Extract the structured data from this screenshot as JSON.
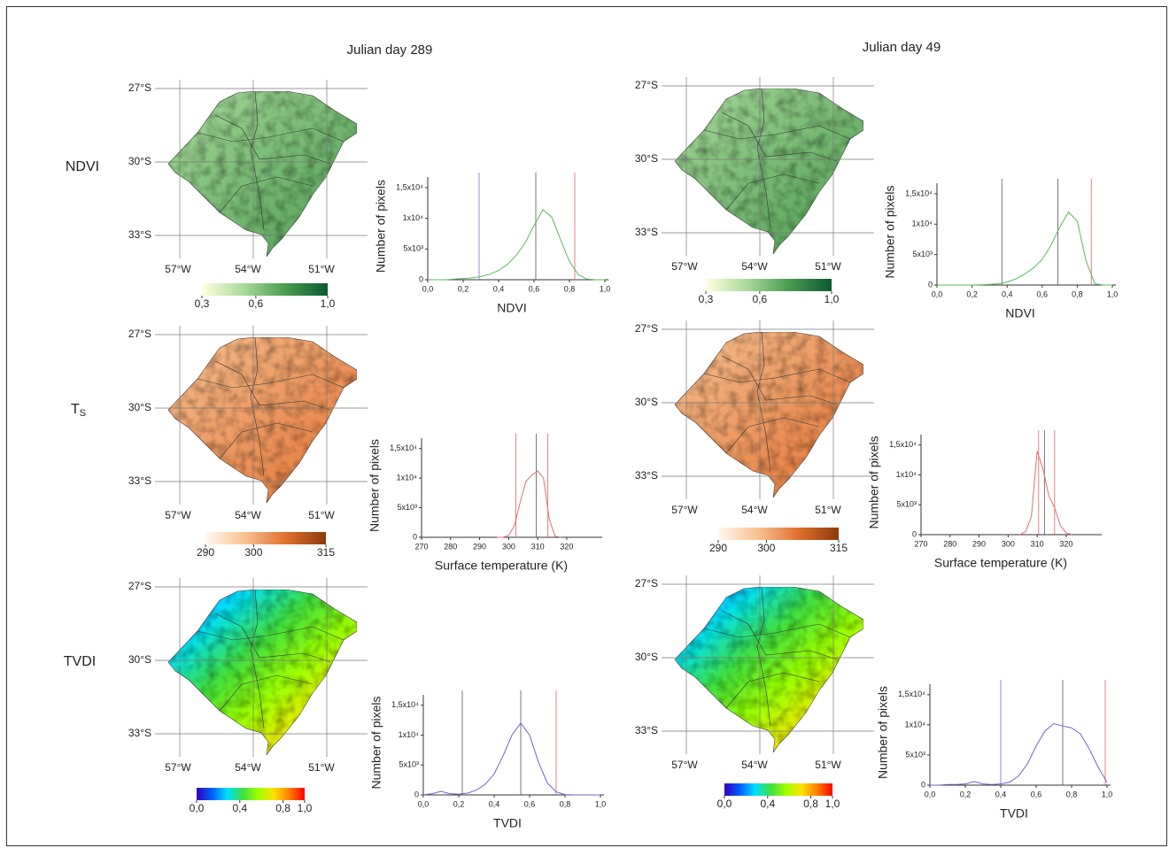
{
  "columns": [
    {
      "title": "Julian day  289"
    },
    {
      "title": "Julian day 49"
    }
  ],
  "rows": [
    {
      "label": "NDVI"
    },
    {
      "label": "T",
      "sub": "S"
    },
    {
      "label": "TVDI"
    }
  ],
  "map_labels": {
    "lat": [
      "27°S",
      "30°S",
      "33°S"
    ],
    "lon": [
      "57°W",
      "54°W",
      "51°W"
    ]
  },
  "colorbars": [
    {
      "colors": [
        "#ffffe0",
        "#a8d99a",
        "#4a9a50",
        "#0a5a30"
      ],
      "lim": [
        0.3,
        1.0
      ],
      "ticks": [
        {
          "value": 0.3,
          "label": "0,3"
        },
        {
          "value": 0.6,
          "label": "0,6"
        },
        {
          "value": 1.0,
          "label": "1,0"
        }
      ]
    },
    {
      "colors": [
        "#fff8f0",
        "#f8c090",
        "#e07030",
        "#8a3a0a"
      ],
      "lim": [
        290,
        315
      ],
      "ticks": [
        290,
        300,
        315
      ]
    },
    {
      "colors": [
        "#3000c0",
        "#0060ff",
        "#00e0ff",
        "#40e040",
        "#a0ff00",
        "#ffe000",
        "#ff8000",
        "#ff0000"
      ],
      "lim": [
        0,
        1
      ],
      "ticks": [
        {
          "value": 0,
          "label": "0,0"
        },
        {
          "value": 0.4,
          "label": "0,4"
        },
        {
          "value": 0.8,
          "label": "0,8"
        },
        {
          "value": 1.0,
          "label": "1,0"
        }
      ]
    }
  ],
  "chart_data": [
    {
      "type": "line",
      "xlabel": "NDVI",
      "ylabel": "Number of pixels",
      "color": "#5cb85c",
      "x": [
        0,
        0.05,
        0.1,
        0.15,
        0.2,
        0.25,
        0.3,
        0.35,
        0.4,
        0.45,
        0.5,
        0.55,
        0.6,
        0.65,
        0.7,
        0.75,
        0.8,
        0.85,
        0.9,
        0.95,
        1.0
      ],
      "values": [
        0,
        0,
        0,
        100,
        200,
        300,
        500,
        900,
        1500,
        2500,
        4000,
        6000,
        8800,
        11400,
        10200,
        6500,
        3000,
        800,
        100,
        0,
        0
      ],
      "vlines": [
        {
          "value": 0.29,
          "color": "#7070e0"
        },
        {
          "value": 0.61,
          "color": "#555555"
        },
        {
          "value": 0.83,
          "color": "#e06060"
        }
      ],
      "xlim": [
        0,
        1
      ],
      "xticks": [
        {
          "value": 0,
          "label": "0,0"
        },
        {
          "value": 0.2,
          "label": "0,2"
        },
        {
          "value": 0.4,
          "label": "0,4"
        },
        {
          "value": 0.6,
          "label": "0,6"
        },
        {
          "value": 0.8,
          "label": "0,8"
        },
        {
          "value": 1.0,
          "label": "1,0"
        }
      ],
      "ylim": [
        0,
        16000
      ],
      "yticks": [
        0,
        {
          "value": 5000,
          "label": "5x10³"
        },
        {
          "value": 15000,
          "label": "1,5x10⁴"
        },
        {
          "value": 10000,
          "label": "1x10⁴"
        }
      ]
    },
    {
      "type": "line",
      "xlabel": "Surface temperature (K)",
      "ylabel": "Number of pixels",
      "color": "#e07070",
      "x": [
        296,
        298,
        300,
        302,
        304,
        306,
        308,
        310,
        312,
        314,
        316,
        318
      ],
      "values": [
        0,
        0,
        300,
        2000,
        6000,
        9500,
        10500,
        11200,
        10000,
        3000,
        200,
        0
      ],
      "vlines": [
        {
          "value": 302.5,
          "color": "#e06060"
        },
        {
          "value": 309.5,
          "color": "#555555"
        },
        {
          "value": 313.5,
          "color": "#e06060"
        }
      ],
      "xlim": [
        270,
        331
      ],
      "xticks": [
        270,
        280,
        290,
        300,
        310,
        320
      ],
      "ylim": [
        0,
        16000
      ],
      "yticks": [
        0,
        {
          "value": 5000,
          "label": "5x10³"
        },
        {
          "value": 15000,
          "label": "1,5x10⁴"
        },
        {
          "value": 10000,
          "label": "1x10⁴"
        }
      ]
    },
    {
      "type": "line",
      "xlabel": "TVDI",
      "ylabel": "Number of pixels",
      "color": "#6666cc",
      "x": [
        0,
        0.05,
        0.1,
        0.15,
        0.2,
        0.25,
        0.3,
        0.35,
        0.4,
        0.45,
        0.5,
        0.55,
        0.6,
        0.65,
        0.7,
        0.75,
        0.8,
        0.85,
        0.9,
        0.95,
        1.0
      ],
      "values": [
        0,
        200,
        600,
        200,
        100,
        300,
        800,
        1800,
        3500,
        6500,
        10000,
        12000,
        10000,
        5500,
        2000,
        500,
        50,
        0,
        0,
        0,
        0
      ],
      "vlines": [
        {
          "value": 0.22,
          "color": "#555555"
        },
        {
          "value": 0.55,
          "color": "#555555"
        },
        {
          "value": 0.75,
          "color": "#e06060"
        }
      ],
      "xlim": [
        0,
        1
      ],
      "xticks": [
        {
          "value": 0,
          "label": "0,0"
        },
        {
          "value": 0.2,
          "label": "0,2"
        },
        {
          "value": 0.4,
          "label": "0,4"
        },
        {
          "value": 0.6,
          "label": "0,6"
        },
        {
          "value": 0.8,
          "label": "0,8"
        },
        {
          "value": 1.0,
          "label": "1,0"
        }
      ],
      "ylim": [
        0,
        16000
      ],
      "yticks": [
        0,
        {
          "value": 5000,
          "label": "5x10³"
        },
        {
          "value": 15000,
          "label": "1,5x10⁴"
        },
        {
          "value": 10000,
          "label": "1x10⁴"
        }
      ]
    },
    {
      "type": "line",
      "xlabel": "NDVI",
      "ylabel": "Number of pixels",
      "color": "#5cb85c",
      "x": [
        0,
        0.05,
        0.1,
        0.15,
        0.2,
        0.25,
        0.3,
        0.35,
        0.4,
        0.45,
        0.5,
        0.55,
        0.6,
        0.65,
        0.7,
        0.75,
        0.8,
        0.85,
        0.9,
        0.95,
        1.0
      ],
      "values": [
        0,
        0,
        0,
        0,
        0,
        50,
        100,
        200,
        500,
        1000,
        1800,
        2800,
        4200,
        6500,
        9500,
        12000,
        10500,
        4000,
        200,
        0,
        0
      ],
      "vlines": [
        {
          "value": 0.37,
          "color": "#555555"
        },
        {
          "value": 0.69,
          "color": "#555555"
        },
        {
          "value": 0.88,
          "color": "#e06060"
        }
      ],
      "xlim": [
        0,
        1
      ],
      "xticks": [
        {
          "value": 0,
          "label": "0,0"
        },
        {
          "value": 0.2,
          "label": "0,2"
        },
        {
          "value": 0.4,
          "label": "0,4"
        },
        {
          "value": 0.6,
          "label": "0,6"
        },
        {
          "value": 0.8,
          "label": "0,8"
        },
        {
          "value": 1.0,
          "label": "1,0"
        }
      ],
      "ylim": [
        0,
        16000
      ],
      "yticks": [
        0,
        {
          "value": 5000,
          "label": "5x10³"
        },
        {
          "value": 15000,
          "label": "1,5x10⁴"
        },
        {
          "value": 10000,
          "label": "1x10⁴"
        }
      ]
    },
    {
      "type": "line",
      "xlabel": "Surface temperature (K)",
      "ylabel": "Number of pixels",
      "color": "#e07070",
      "x": [
        304,
        306,
        308,
        310,
        312,
        314,
        316,
        318,
        320,
        322
      ],
      "values": [
        0,
        500,
        3000,
        14000,
        11000,
        6500,
        4500,
        1500,
        300,
        0
      ],
      "vlines": [
        {
          "value": 310.5,
          "color": "#e06060"
        },
        {
          "value": 312.5,
          "color": "#555555"
        },
        {
          "value": 316,
          "color": "#e06060"
        }
      ],
      "xlim": [
        270,
        331
      ],
      "xticks": [
        270,
        280,
        290,
        300,
        310,
        320
      ],
      "ylim": [
        0,
        16000
      ],
      "yticks": [
        0,
        {
          "value": 5000,
          "label": "5x10³"
        },
        {
          "value": 15000,
          "label": "1,5x10⁴"
        },
        {
          "value": 10000,
          "label": "1x10⁴"
        }
      ]
    },
    {
      "type": "line",
      "xlabel": "TVDI",
      "ylabel": "Number of pixels",
      "color": "#6666cc",
      "x": [
        0,
        0.05,
        0.1,
        0.15,
        0.2,
        0.25,
        0.3,
        0.35,
        0.4,
        0.45,
        0.5,
        0.55,
        0.6,
        0.65,
        0.7,
        0.75,
        0.8,
        0.85,
        0.9,
        0.95,
        1.0
      ],
      "values": [
        0,
        0,
        100,
        100,
        200,
        600,
        200,
        100,
        200,
        500,
        1500,
        3500,
        6500,
        9000,
        10200,
        9800,
        9500,
        8500,
        6000,
        3000,
        500
      ],
      "vlines": [
        {
          "value": 0.4,
          "color": "#7070e0"
        },
        {
          "value": 0.75,
          "color": "#555555"
        },
        {
          "value": 0.99,
          "color": "#e06060"
        }
      ],
      "xlim": [
        0,
        1
      ],
      "xticks": [
        {
          "value": 0,
          "label": "0,0"
        },
        {
          "value": 0.2,
          "label": "0,2"
        },
        {
          "value": 0.4,
          "label": "0,4"
        },
        {
          "value": 0.6,
          "label": "0,6"
        },
        {
          "value": 0.8,
          "label": "0,8"
        },
        {
          "value": 1.0,
          "label": "1,0"
        }
      ],
      "ylim": [
        0,
        16000
      ],
      "yticks": [
        0,
        {
          "value": 5000,
          "label": "5x10³"
        },
        {
          "value": 15000,
          "label": "1,5x10⁴"
        },
        {
          "value": 10000,
          "label": "1x10⁴"
        }
      ]
    }
  ]
}
